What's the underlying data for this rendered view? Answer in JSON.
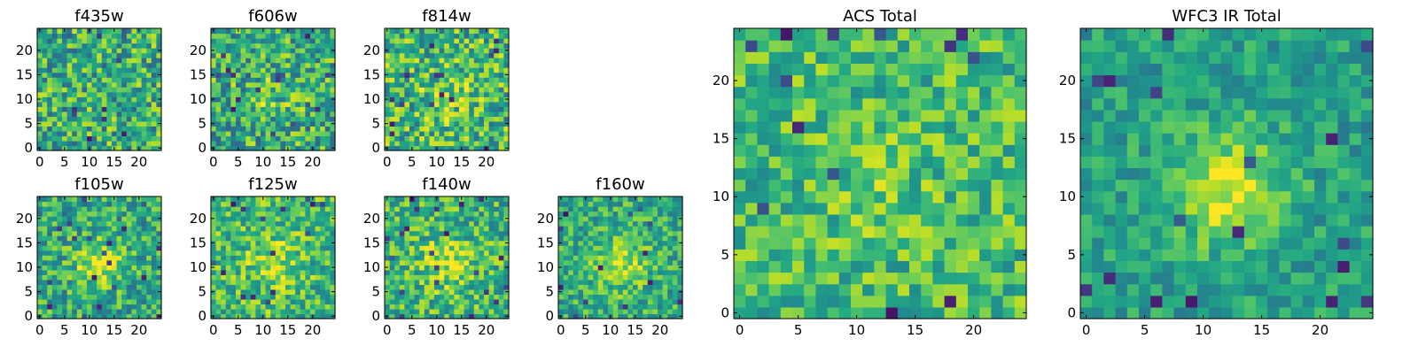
{
  "colors": {
    "colormap": "viridis",
    "background": "#ffffff",
    "frame": "#000000"
  },
  "chart_data": [
    {
      "type": "heatmap",
      "title": "f435w",
      "grid_size": 25,
      "xlim": [
        0,
        25
      ],
      "ylim": [
        0,
        25
      ],
      "xticks": [
        "0",
        "5",
        "10",
        "15",
        "20"
      ],
      "yticks": [
        "0",
        "5",
        "10",
        "15",
        "20"
      ],
      "colormap": "viridis",
      "seed": 11,
      "base": 0.62,
      "blob": 0.0,
      "noise": 0.3
    },
    {
      "type": "heatmap",
      "title": "f606w",
      "grid_size": 25,
      "xlim": [
        0,
        25
      ],
      "ylim": [
        0,
        25
      ],
      "xticks": [
        "0",
        "5",
        "10",
        "15",
        "20"
      ],
      "yticks": [
        "0",
        "5",
        "10",
        "15",
        "20"
      ],
      "colormap": "viridis",
      "seed": 23,
      "base": 0.62,
      "blob": 0.1,
      "noise": 0.3
    },
    {
      "type": "heatmap",
      "title": "f814w",
      "grid_size": 25,
      "xlim": [
        0,
        25
      ],
      "ylim": [
        0,
        25
      ],
      "xticks": [
        "0",
        "5",
        "10",
        "15",
        "20"
      ],
      "yticks": [
        "0",
        "5",
        "10",
        "15",
        "20"
      ],
      "colormap": "viridis",
      "seed": 37,
      "base": 0.66,
      "blob": 0.12,
      "noise": 0.3
    },
    {
      "type": "heatmap",
      "title": "f105w",
      "grid_size": 25,
      "xlim": [
        0,
        25
      ],
      "ylim": [
        0,
        25
      ],
      "xticks": [
        "0",
        "5",
        "10",
        "15",
        "20"
      ],
      "yticks": [
        "0",
        "5",
        "10",
        "15",
        "20"
      ],
      "colormap": "viridis",
      "seed": 41,
      "base": 0.6,
      "blob": 0.3,
      "noise": 0.25
    },
    {
      "type": "heatmap",
      "title": "f125w",
      "grid_size": 25,
      "xlim": [
        0,
        25
      ],
      "ylim": [
        0,
        25
      ],
      "xticks": [
        "0",
        "5",
        "10",
        "15",
        "20"
      ],
      "yticks": [
        "0",
        "5",
        "10",
        "15",
        "20"
      ],
      "colormap": "viridis",
      "seed": 53,
      "base": 0.68,
      "blob": 0.2,
      "noise": 0.25
    },
    {
      "type": "heatmap",
      "title": "f140w",
      "grid_size": 25,
      "xlim": [
        0,
        25
      ],
      "ylim": [
        0,
        25
      ],
      "xticks": [
        "0",
        "5",
        "10",
        "15",
        "20"
      ],
      "yticks": [
        "0",
        "5",
        "10",
        "15",
        "20"
      ],
      "colormap": "viridis",
      "seed": 67,
      "base": 0.66,
      "blob": 0.25,
      "noise": 0.25
    },
    {
      "type": "heatmap",
      "title": "f160w",
      "grid_size": 25,
      "xlim": [
        0,
        25
      ],
      "ylim": [
        0,
        25
      ],
      "xticks": [
        "0",
        "5",
        "10",
        "15",
        "20"
      ],
      "yticks": [
        "0",
        "5",
        "10",
        "15",
        "20"
      ],
      "colormap": "viridis",
      "seed": 79,
      "base": 0.62,
      "blob": 0.3,
      "noise": 0.22
    },
    {
      "type": "heatmap",
      "title": "ACS Total",
      "grid_size": 25,
      "xlim": [
        0,
        25
      ],
      "ylim": [
        0,
        25
      ],
      "xticks": [
        "0",
        "5",
        "10",
        "15",
        "20"
      ],
      "yticks": [
        "0",
        "5",
        "10",
        "15",
        "20"
      ],
      "colormap": "viridis",
      "seed": 97,
      "base": 0.68,
      "blob": 0.08,
      "noise": 0.22
    },
    {
      "type": "heatmap",
      "title": "WFC3 IR Total",
      "grid_size": 25,
      "xlim": [
        0,
        25
      ],
      "ylim": [
        0,
        25
      ],
      "xticks": [
        "0",
        "5",
        "10",
        "15",
        "20"
      ],
      "yticks": [
        "0",
        "5",
        "10",
        "15",
        "20"
      ],
      "colormap": "viridis",
      "seed": 113,
      "base": 0.56,
      "blob": 0.38,
      "noise": 0.16
    }
  ]
}
